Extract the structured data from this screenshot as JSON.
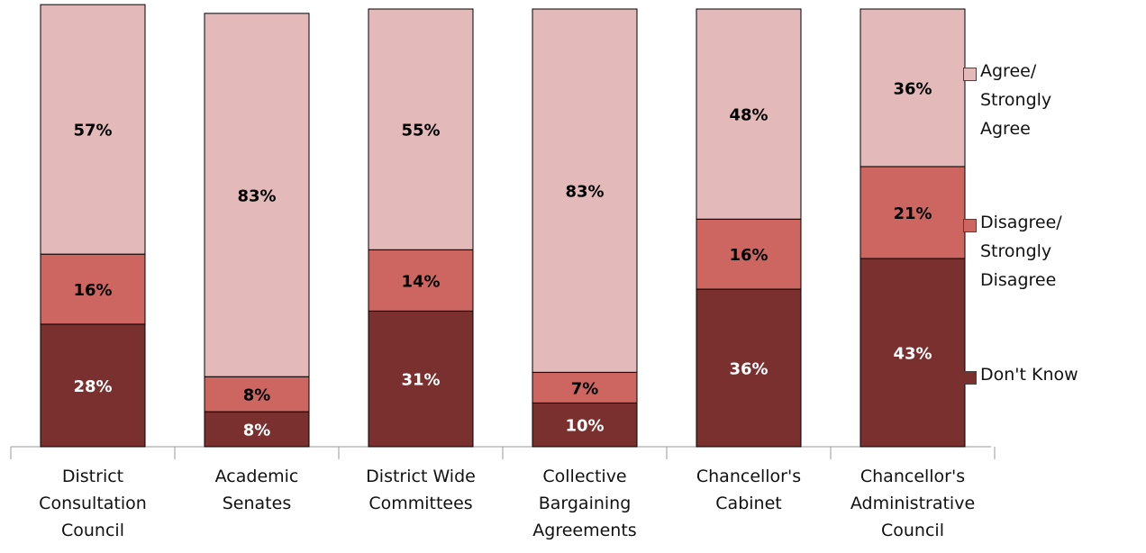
{
  "chart_data": {
    "type": "stacked_bar",
    "categories": [
      "District Consultation Council",
      "Academic Senates",
      "District Wide Committees",
      "Collective Bargaining Agreements",
      "Chancellor's Cabinet",
      "Chancellor's Administrative Council"
    ],
    "series": [
      {
        "name": "Don't Know",
        "color": "#7b3030",
        "values": [
          28,
          8,
          31,
          10,
          36,
          43
        ],
        "value_labels": [
          "28%",
          "8%",
          "31%",
          "10%",
          "36%",
          "43%"
        ]
      },
      {
        "name": "Disagree/ Strongly Disagree",
        "color": "#cd6660",
        "values": [
          16,
          8,
          14,
          7,
          16,
          21
        ],
        "value_labels": [
          "16%",
          "8%",
          "14%",
          "7%",
          "16%",
          "21%"
        ]
      },
      {
        "name": "Agree/ Strongly Agree",
        "color": "#e3b9b9",
        "values": [
          57,
          83,
          55,
          83,
          48,
          36
        ],
        "value_labels": [
          "57%",
          "83%",
          "55%",
          "83%",
          "48%",
          "36%"
        ]
      }
    ]
  }
}
